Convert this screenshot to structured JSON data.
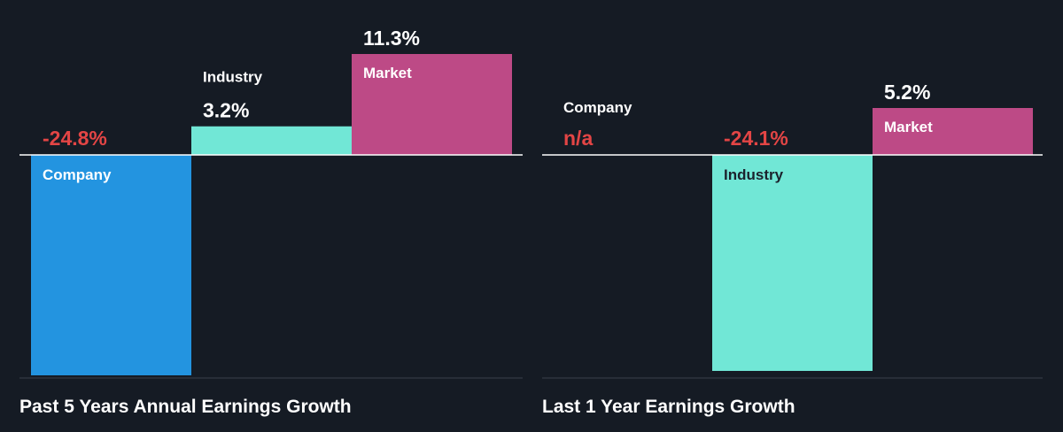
{
  "colors": {
    "background": "#151b24",
    "company": "#2394e0",
    "industry": "#71e7d6",
    "market": "#bd4a86",
    "negative_text": "#e34545",
    "text": "#ffffff",
    "dark_text": "#1b222d",
    "axis": "#ffffff",
    "divider": "#3a414b"
  },
  "chart_data": [
    {
      "type": "bar",
      "title": "Past 5 Years Annual Earnings Growth",
      "categories": [
        "Company",
        "Industry",
        "Market"
      ],
      "values": [
        -24.8,
        3.2,
        11.3
      ],
      "value_labels": [
        "-24.8%",
        "3.2%",
        "11.3%"
      ],
      "ylim": [
        -25,
        11.3
      ],
      "grid": false
    },
    {
      "type": "bar",
      "title": "Last 1 Year Earnings Growth",
      "categories": [
        "Company",
        "Industry",
        "Market"
      ],
      "values": [
        null,
        -24.1,
        5.2
      ],
      "value_labels": [
        "n/a",
        "-24.1%",
        "5.2%"
      ],
      "ylim": [
        -24.1,
        5.2
      ],
      "grid": false
    }
  ]
}
